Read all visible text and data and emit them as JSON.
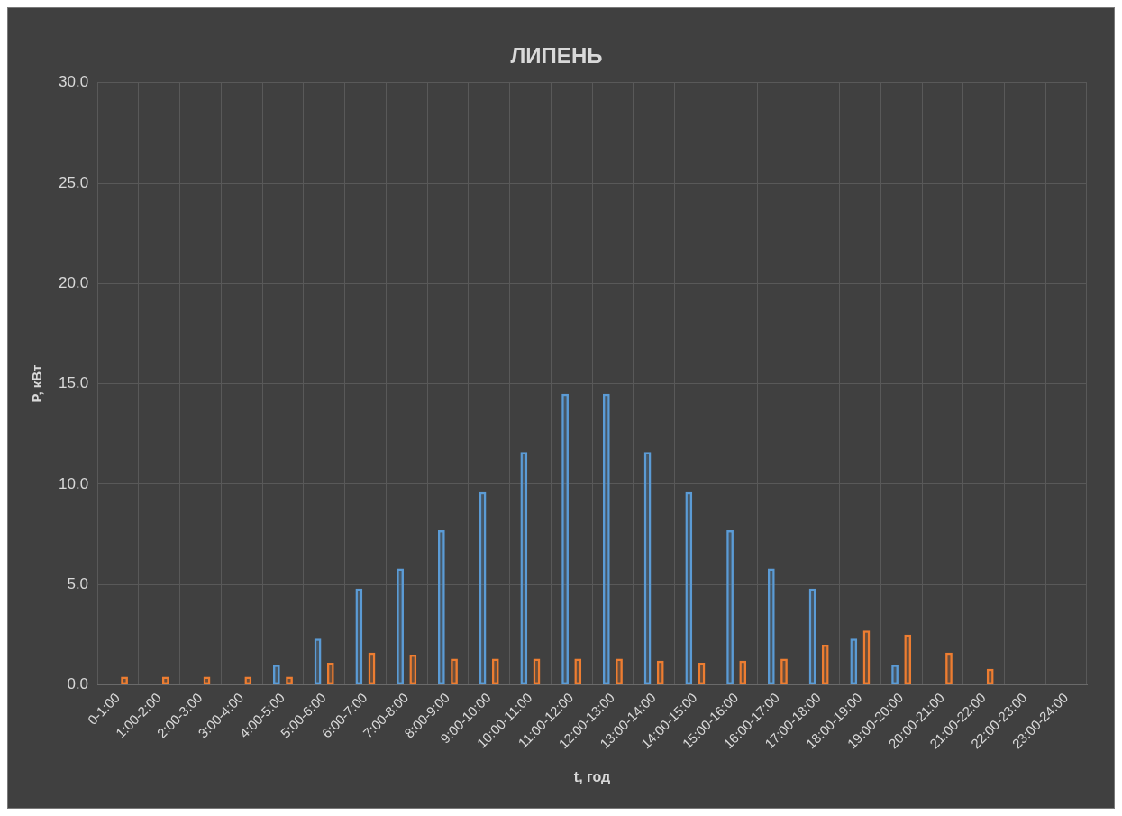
{
  "chart_data": {
    "type": "bar",
    "title": "ЛИПЕНЬ",
    "xlabel": "t, год",
    "ylabel": "P, кВт",
    "categories": [
      "0-1:00",
      "1:00-2:00",
      "2:00-3:00",
      "3:00-4:00",
      "4:00-5:00",
      "5:00-6:00",
      "6:00-7:00",
      "7:00-8:00",
      "8:00-9:00",
      "9:00-10:00",
      "10:00-11:00",
      "11:00-12:00",
      "12:00-13:00",
      "13:00-14:00",
      "14:00-15:00",
      "15:00-16:00",
      "16:00-17:00",
      "17:00-18:00",
      "18:00-19:00",
      "19:00-20:00",
      "20:00-21:00",
      "21:00-22:00",
      "22:00-23:00",
      "23:00-24:00"
    ],
    "series": [
      {
        "color": "#5b9bd5",
        "values": [
          null,
          null,
          null,
          null,
          1.0,
          2.3,
          4.8,
          5.8,
          7.7,
          9.6,
          11.6,
          14.5,
          14.5,
          11.6,
          9.6,
          7.7,
          5.8,
          4.8,
          2.3,
          1.0,
          null,
          null,
          null,
          null
        ]
      },
      {
        "color": "#ed7d31",
        "values": [
          0.4,
          0.4,
          0.4,
          0.4,
          0.4,
          1.1,
          1.6,
          1.5,
          1.3,
          1.3,
          1.3,
          1.3,
          1.3,
          1.2,
          1.1,
          1.2,
          1.3,
          2.0,
          2.7,
          2.5,
          1.6,
          0.8,
          null,
          null
        ]
      }
    ],
    "ylim": [
      0,
      30
    ],
    "yticks": [
      {
        "value": 0,
        "label": "0.0"
      },
      {
        "value": 5,
        "label": "5.0"
      },
      {
        "value": 10,
        "label": "10.0"
      },
      {
        "value": 15,
        "label": "15.0"
      },
      {
        "value": 20,
        "label": "20.0"
      },
      {
        "value": 25,
        "label": "25.0"
      },
      {
        "value": 30,
        "label": "30.0"
      }
    ],
    "grid": true,
    "legend": false
  }
}
